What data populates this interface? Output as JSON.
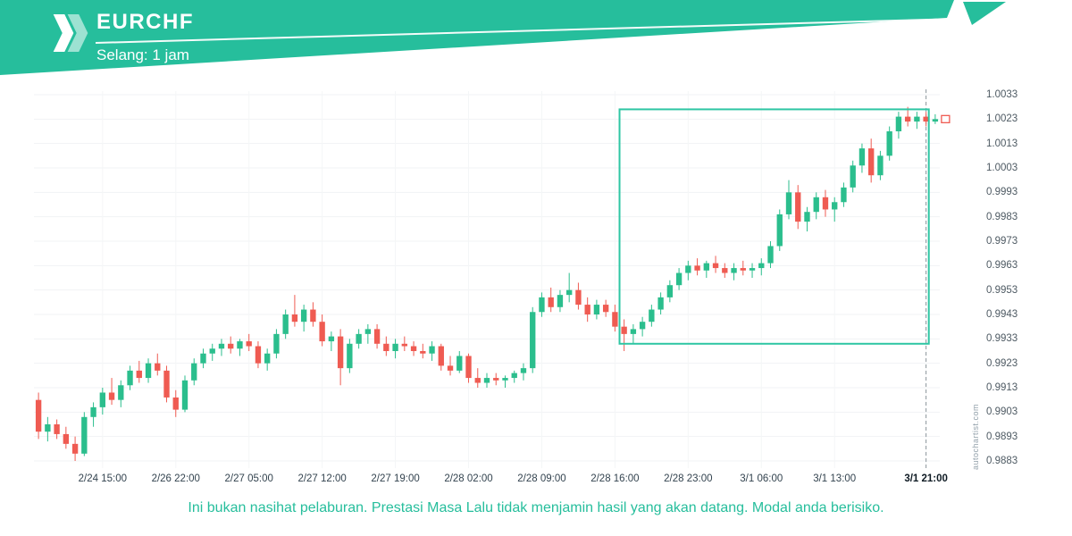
{
  "header": {
    "symbol": "EURCHF",
    "interval_label": "Selang: 1 jam",
    "brand_color": "#26BE9C"
  },
  "watermark": "autochartist.com",
  "disclaimer": "Ini bukan nasihat pelaburan. Prestasi Masa Lalu tidak menjamin hasil yang akan datang. Modal anda berisiko.",
  "chart_data": {
    "type": "candlestick",
    "title": "EURCHF",
    "interval": "1 jam",
    "grid": true,
    "legend": "none",
    "y_range": [
      0.9883,
      1.0033
    ],
    "y_ticks": [
      1.0033,
      1.0023,
      1.0013,
      1.0003,
      0.9993,
      0.9983,
      0.9973,
      0.9963,
      0.9953,
      0.9943,
      0.9933,
      0.9923,
      0.9913,
      0.9903,
      0.9893,
      0.9883
    ],
    "x_labels": [
      {
        "label": "2/24 15:00",
        "index": 7
      },
      {
        "label": "2/26 22:00",
        "index": 15
      },
      {
        "label": "2/27 05:00",
        "index": 23
      },
      {
        "label": "2/27 12:00",
        "index": 31
      },
      {
        "label": "2/27 19:00",
        "index": 39
      },
      {
        "label": "2/28 02:00",
        "index": 47
      },
      {
        "label": "2/28 09:00",
        "index": 55
      },
      {
        "label": "2/28 16:00",
        "index": 63
      },
      {
        "label": "2/28 23:00",
        "index": 71
      },
      {
        "label": "3/1 06:00",
        "index": 79
      },
      {
        "label": "3/1 13:00",
        "index": 87
      },
      {
        "label": "3/1 21:00",
        "index": 97,
        "bold": true
      }
    ],
    "colors": {
      "up": "#2BBE8D",
      "down": "#EF5B52",
      "box": "#2FC6A4",
      "dashed": "#8b959c"
    },
    "last_price": 1.0023,
    "highlight_box": {
      "start_index": 63.5,
      "end_index": 97.3,
      "price_top": 1.0027,
      "price_bottom": 0.9931
    },
    "dashed_line_index": 97,
    "candles": [
      [
        0.9908,
        0.9911,
        0.9892,
        0.9895
      ],
      [
        0.9895,
        0.9901,
        0.9891,
        0.9898
      ],
      [
        0.9898,
        0.99,
        0.9892,
        0.9894
      ],
      [
        0.9894,
        0.9897,
        0.9888,
        0.989
      ],
      [
        0.989,
        0.9893,
        0.9883,
        0.9886
      ],
      [
        0.9886,
        0.9903,
        0.9885,
        0.9901
      ],
      [
        0.9901,
        0.9907,
        0.9897,
        0.9905
      ],
      [
        0.9905,
        0.9913,
        0.9902,
        0.9911
      ],
      [
        0.9911,
        0.9917,
        0.9906,
        0.9908
      ],
      [
        0.9908,
        0.9916,
        0.9905,
        0.9914
      ],
      [
        0.9914,
        0.9922,
        0.9912,
        0.992
      ],
      [
        0.992,
        0.9924,
        0.9915,
        0.9917
      ],
      [
        0.9917,
        0.9925,
        0.9915,
        0.9923
      ],
      [
        0.9923,
        0.9927,
        0.9918,
        0.992
      ],
      [
        0.992,
        0.9922,
        0.9907,
        0.9909
      ],
      [
        0.9909,
        0.9912,
        0.9901,
        0.9904
      ],
      [
        0.9904,
        0.9918,
        0.9903,
        0.9916
      ],
      [
        0.9916,
        0.9925,
        0.9914,
        0.9923
      ],
      [
        0.9923,
        0.9929,
        0.9921,
        0.9927
      ],
      [
        0.9927,
        0.9931,
        0.9924,
        0.9929
      ],
      [
        0.9929,
        0.9933,
        0.9926,
        0.9931
      ],
      [
        0.9931,
        0.9934,
        0.9927,
        0.9929
      ],
      [
        0.9929,
        0.9933,
        0.9926,
        0.9932
      ],
      [
        0.9932,
        0.9935,
        0.9928,
        0.993
      ],
      [
        0.993,
        0.9932,
        0.9921,
        0.9923
      ],
      [
        0.9923,
        0.9929,
        0.992,
        0.9927
      ],
      [
        0.9927,
        0.9937,
        0.9925,
        0.9935
      ],
      [
        0.9935,
        0.9945,
        0.9933,
        0.9943
      ],
      [
        0.9943,
        0.9951,
        0.9938,
        0.994
      ],
      [
        0.994,
        0.9947,
        0.9936,
        0.9945
      ],
      [
        0.9945,
        0.9948,
        0.9938,
        0.994
      ],
      [
        0.994,
        0.9943,
        0.993,
        0.9932
      ],
      [
        0.9932,
        0.9936,
        0.9928,
        0.9934
      ],
      [
        0.9934,
        0.9937,
        0.9914,
        0.9921
      ],
      [
        0.9921,
        0.9933,
        0.9919,
        0.9931
      ],
      [
        0.9931,
        0.9937,
        0.9929,
        0.9935
      ],
      [
        0.9935,
        0.9939,
        0.9931,
        0.9937
      ],
      [
        0.9937,
        0.9939,
        0.9929,
        0.9931
      ],
      [
        0.9931,
        0.9934,
        0.9926,
        0.9928
      ],
      [
        0.9928,
        0.9933,
        0.9925,
        0.9931
      ],
      [
        0.9931,
        0.9934,
        0.9928,
        0.993
      ],
      [
        0.993,
        0.9932,
        0.9926,
        0.9928
      ],
      [
        0.9928,
        0.9931,
        0.9925,
        0.9927
      ],
      [
        0.9927,
        0.9932,
        0.9924,
        0.993
      ],
      [
        0.993,
        0.9931,
        0.992,
        0.9922
      ],
      [
        0.9922,
        0.9926,
        0.9918,
        0.992
      ],
      [
        0.992,
        0.9928,
        0.9919,
        0.9926
      ],
      [
        0.9926,
        0.9927,
        0.9915,
        0.9917
      ],
      [
        0.9917,
        0.9921,
        0.9913,
        0.9915
      ],
      [
        0.9915,
        0.9919,
        0.9913,
        0.9917
      ],
      [
        0.9917,
        0.9919,
        0.9914,
        0.9916
      ],
      [
        0.9916,
        0.9918,
        0.9913,
        0.9917
      ],
      [
        0.9917,
        0.992,
        0.9915,
        0.9919
      ],
      [
        0.9919,
        0.9923,
        0.9916,
        0.9921
      ],
      [
        0.9921,
        0.9946,
        0.9919,
        0.9944
      ],
      [
        0.9944,
        0.9952,
        0.9942,
        0.995
      ],
      [
        0.995,
        0.9954,
        0.9944,
        0.9946
      ],
      [
        0.9946,
        0.9953,
        0.9944,
        0.9951
      ],
      [
        0.9951,
        0.996,
        0.9948,
        0.9953
      ],
      [
        0.9953,
        0.9956,
        0.9945,
        0.9947
      ],
      [
        0.9947,
        0.995,
        0.994,
        0.9943
      ],
      [
        0.9943,
        0.9949,
        0.9941,
        0.9947
      ],
      [
        0.9947,
        0.9949,
        0.9942,
        0.9944
      ],
      [
        0.9944,
        0.9947,
        0.9936,
        0.9938
      ],
      [
        0.9938,
        0.9941,
        0.9928,
        0.9935
      ],
      [
        0.9935,
        0.9939,
        0.9931,
        0.9937
      ],
      [
        0.9937,
        0.9942,
        0.9934,
        0.994
      ],
      [
        0.994,
        0.9947,
        0.9938,
        0.9945
      ],
      [
        0.9945,
        0.9952,
        0.9943,
        0.995
      ],
      [
        0.995,
        0.9957,
        0.9948,
        0.9955
      ],
      [
        0.9955,
        0.9962,
        0.9953,
        0.996
      ],
      [
        0.996,
        0.9965,
        0.9957,
        0.9963
      ],
      [
        0.9963,
        0.9966,
        0.9959,
        0.9961
      ],
      [
        0.9961,
        0.9965,
        0.9958,
        0.9964
      ],
      [
        0.9964,
        0.9967,
        0.996,
        0.9962
      ],
      [
        0.9962,
        0.9964,
        0.9958,
        0.996
      ],
      [
        0.996,
        0.9964,
        0.9957,
        0.9962
      ],
      [
        0.9962,
        0.9965,
        0.9959,
        0.9961
      ],
      [
        0.9961,
        0.9964,
        0.9958,
        0.9962
      ],
      [
        0.9962,
        0.9966,
        0.9959,
        0.9964
      ],
      [
        0.9964,
        0.9973,
        0.9962,
        0.9971
      ],
      [
        0.9971,
        0.9986,
        0.9969,
        0.9984
      ],
      [
        0.9984,
        0.9998,
        0.9982,
        0.9993
      ],
      [
        0.9993,
        0.9996,
        0.9978,
        0.9981
      ],
      [
        0.9981,
        0.9987,
        0.9977,
        0.9985
      ],
      [
        0.9985,
        0.9993,
        0.9982,
        0.9991
      ],
      [
        0.9991,
        0.9994,
        0.9983,
        0.9986
      ],
      [
        0.9986,
        0.9991,
        0.9981,
        0.9989
      ],
      [
        0.9989,
        0.9997,
        0.9987,
        0.9995
      ],
      [
        0.9995,
        1.0006,
        0.9993,
        1.0004
      ],
      [
        1.0004,
        1.0013,
        1.0001,
        1.0011
      ],
      [
        1.0011,
        1.0015,
        0.9997,
        1.0
      ],
      [
        1.0,
        1.001,
        0.9998,
        1.0008
      ],
      [
        1.0008,
        1.002,
        1.0006,
        1.0018
      ],
      [
        1.0018,
        1.0026,
        1.0015,
        1.0024
      ],
      [
        1.0024,
        1.0028,
        1.002,
        1.0022
      ],
      [
        1.0022,
        1.0026,
        1.0019,
        1.0024
      ],
      [
        1.0024,
        1.0026,
        1.002,
        1.0022
      ],
      [
        1.0022,
        1.0025,
        1.0021,
        1.0023
      ]
    ]
  }
}
